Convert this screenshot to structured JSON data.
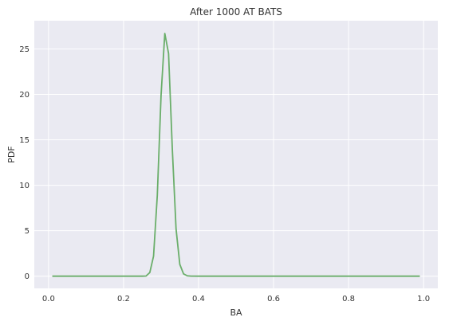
{
  "chart_data": {
    "type": "line",
    "title": "After 1000 AT BATS",
    "xlabel": "BA",
    "ylabel": "PDF",
    "xlim": [
      -0.038,
      1.038
    ],
    "ylim": [
      -1.34,
      28.1
    ],
    "xticks": [
      0.0,
      0.2,
      0.4,
      0.6,
      0.8,
      1.0
    ],
    "xtick_labels": [
      "0.0",
      "0.2",
      "0.4",
      "0.6",
      "0.8",
      "1.0"
    ],
    "yticks": [
      0,
      5,
      10,
      15,
      20,
      25
    ],
    "ytick_labels": [
      "0",
      "5",
      "10",
      "15",
      "20",
      "25"
    ],
    "grid": true,
    "background": "#eaeaf2",
    "grid_color": "#ffffff",
    "series": [
      {
        "color": "#6aae6a",
        "x": [
          0.01,
          0.05,
          0.1,
          0.15,
          0.2,
          0.24,
          0.25,
          0.26,
          0.27,
          0.28,
          0.29,
          0.3,
          0.31,
          0.32,
          0.33,
          0.34,
          0.35,
          0.36,
          0.37,
          0.38,
          0.4,
          0.5,
          0.6,
          0.7,
          0.8,
          0.9,
          0.99
        ],
        "y": [
          0,
          0,
          0,
          0,
          0,
          0,
          0,
          0.02,
          0.4,
          2.2,
          8.9,
          19.9,
          26.7,
          24.5,
          14.0,
          5.2,
          1.3,
          0.25,
          0.04,
          0.005,
          0,
          0,
          0,
          0,
          0,
          0,
          0
        ]
      }
    ]
  }
}
